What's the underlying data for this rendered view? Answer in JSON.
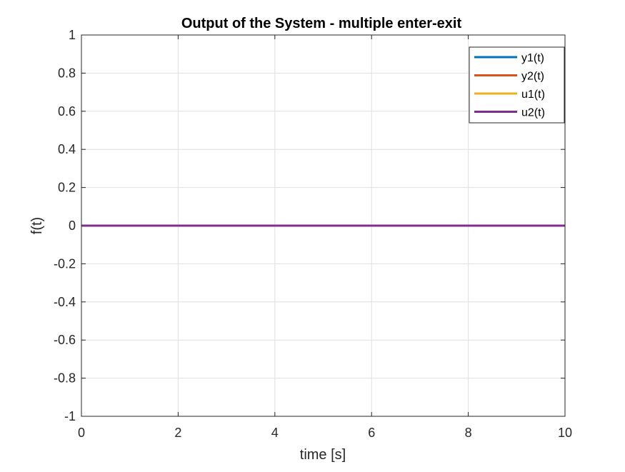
{
  "chart_data": {
    "type": "line",
    "title": "Output of the System - multiple enter-exit",
    "xlabel": "time [s]",
    "ylabel": "f(t)",
    "xlim": [
      0,
      10
    ],
    "ylim": [
      -1,
      1
    ],
    "x_ticks": [
      0,
      2,
      4,
      6,
      8,
      10
    ],
    "x_tick_labels": [
      "0",
      "2",
      "4",
      "6",
      "8",
      "10"
    ],
    "y_ticks": [
      1,
      0.8,
      0.6,
      0.4,
      0.2,
      0,
      -0.2,
      -0.4,
      -0.6,
      -0.8,
      -1
    ],
    "y_tick_labels": [
      "1",
      "0.8",
      "0.6",
      "0.4",
      "0.2",
      "0",
      "-0.2",
      "-0.4",
      "-0.6",
      "-0.8",
      "-1"
    ],
    "grid": true,
    "legend_position": "top-right",
    "series": [
      {
        "name": "y1(t)",
        "color": "#0072BD",
        "x": [
          0,
          10
        ],
        "y": [
          0,
          0
        ]
      },
      {
        "name": "y2(t)",
        "color": "#D95319",
        "x": [
          0,
          10
        ],
        "y": [
          0,
          0
        ]
      },
      {
        "name": "u1(t)",
        "color": "#EDB120",
        "x": [
          0,
          10
        ],
        "y": [
          0,
          0
        ]
      },
      {
        "name": "u2(t)",
        "color": "#7E2F8E",
        "x": [
          0,
          10
        ],
        "y": [
          0,
          0
        ]
      }
    ]
  }
}
